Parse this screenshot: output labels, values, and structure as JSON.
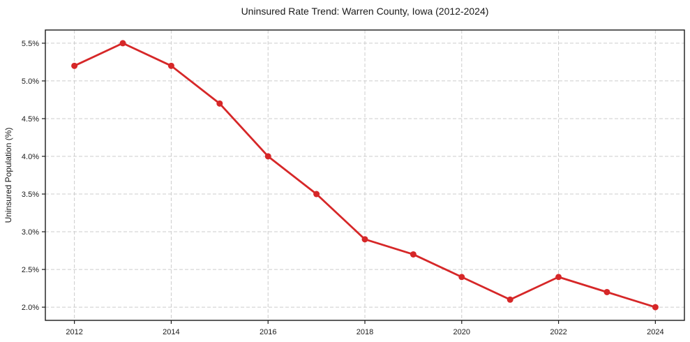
{
  "chart_data": {
    "type": "line",
    "title": "Uninsured Rate Trend: Warren County, Iowa (2012-2024)",
    "xlabel": "",
    "ylabel": "Uninsured Population (%)",
    "x": [
      2012,
      2013,
      2014,
      2015,
      2016,
      2017,
      2018,
      2019,
      2020,
      2021,
      2022,
      2023,
      2024
    ],
    "series": [
      {
        "name": "Uninsured Rate",
        "values": [
          5.2,
          5.5,
          5.2,
          4.7,
          4.0,
          3.5,
          2.9,
          2.7,
          2.4,
          2.1,
          2.4,
          2.2,
          2.0
        ],
        "color": "#d62728"
      }
    ],
    "xlim": [
      2011.4,
      2024.6
    ],
    "ylim": [
      1.825,
      5.675
    ],
    "xticks": [
      2012,
      2014,
      2016,
      2018,
      2020,
      2022,
      2024
    ],
    "yticks": [
      2.0,
      2.5,
      3.0,
      3.5,
      4.0,
      4.5,
      5.0,
      5.5
    ],
    "ytick_suffix": "%",
    "grid": true,
    "legend_position": "none",
    "colors": {
      "grid": "#cccccc",
      "axis": "#1a1a1a",
      "text": "#1a1a1a",
      "plot_background": "#ffffff"
    }
  }
}
